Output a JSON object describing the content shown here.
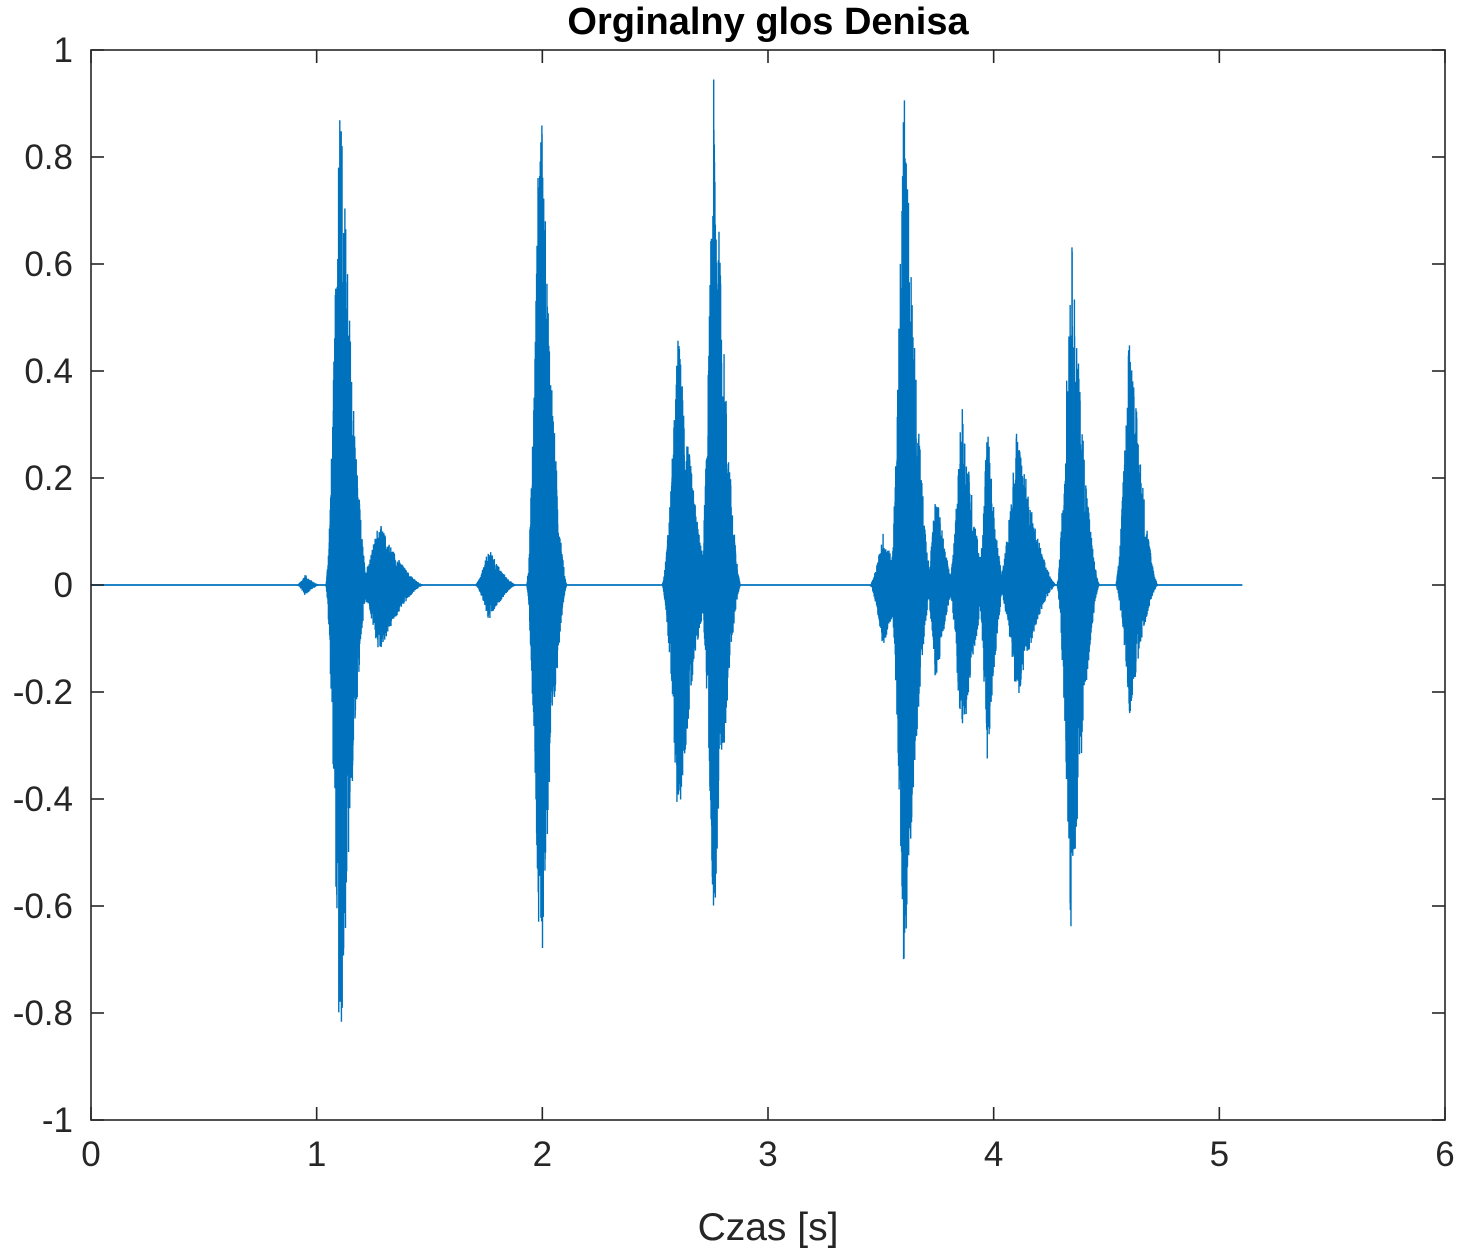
{
  "chart_data": {
    "type": "line",
    "title": "Orginalny glos Denisa",
    "xlabel": "Czas [s]",
    "ylabel": "",
    "xlim": [
      0,
      6
    ],
    "ylim": [
      -1,
      1
    ],
    "xticks": [
      0,
      1,
      2,
      3,
      4,
      5,
      6
    ],
    "xtick_labels": [
      "0",
      "1",
      "2",
      "3",
      "4",
      "5",
      "6"
    ],
    "yticks": [
      1,
      0.8,
      0.6,
      0.4,
      0.2,
      0,
      -0.2,
      -0.4,
      -0.6,
      -0.8,
      -1
    ],
    "ytick_labels": [
      "1",
      "0.8",
      "0.6",
      "0.4",
      "0.2",
      "0",
      "-0.2",
      "-0.4",
      "-0.6",
      "-0.8",
      "-1"
    ],
    "grid": false,
    "legend": "none",
    "series": [
      {
        "color": "#0072BD",
        "signal_end": 5.1,
        "bursts": [
          {
            "start": 0.93,
            "end": 0.99,
            "max": 0.02,
            "min": -0.02
          },
          {
            "start": 1.06,
            "end": 1.2,
            "max": 0.99,
            "min": -0.94
          },
          {
            "start": 1.2,
            "end": 1.45,
            "max": 0.12,
            "min": -0.13
          },
          {
            "start": 1.72,
            "end": 1.86,
            "max": 0.07,
            "min": -0.07
          },
          {
            "start": 1.95,
            "end": 2.08,
            "max": 0.98,
            "min": -0.8
          },
          {
            "start": 2.55,
            "end": 2.72,
            "max": 0.48,
            "min": -0.46
          },
          {
            "start": 2.72,
            "end": 2.85,
            "max": 0.95,
            "min": -0.66
          },
          {
            "start": 3.47,
            "end": 3.6,
            "max": 0.1,
            "min": -0.12
          },
          {
            "start": 3.56,
            "end": 3.7,
            "max": 0.96,
            "min": -0.74
          },
          {
            "start": 3.72,
            "end": 3.8,
            "max": 0.19,
            "min": -0.2
          },
          {
            "start": 3.82,
            "end": 3.95,
            "max": 0.35,
            "min": -0.33
          },
          {
            "start": 3.95,
            "end": 4.02,
            "max": 0.32,
            "min": -0.36
          },
          {
            "start": 4.04,
            "end": 4.25,
            "max": 0.3,
            "min": -0.22
          },
          {
            "start": 4.3,
            "end": 4.44,
            "max": 0.68,
            "min": -0.66
          },
          {
            "start": 4.56,
            "end": 4.7,
            "max": 0.51,
            "min": -0.25
          }
        ]
      }
    ]
  }
}
